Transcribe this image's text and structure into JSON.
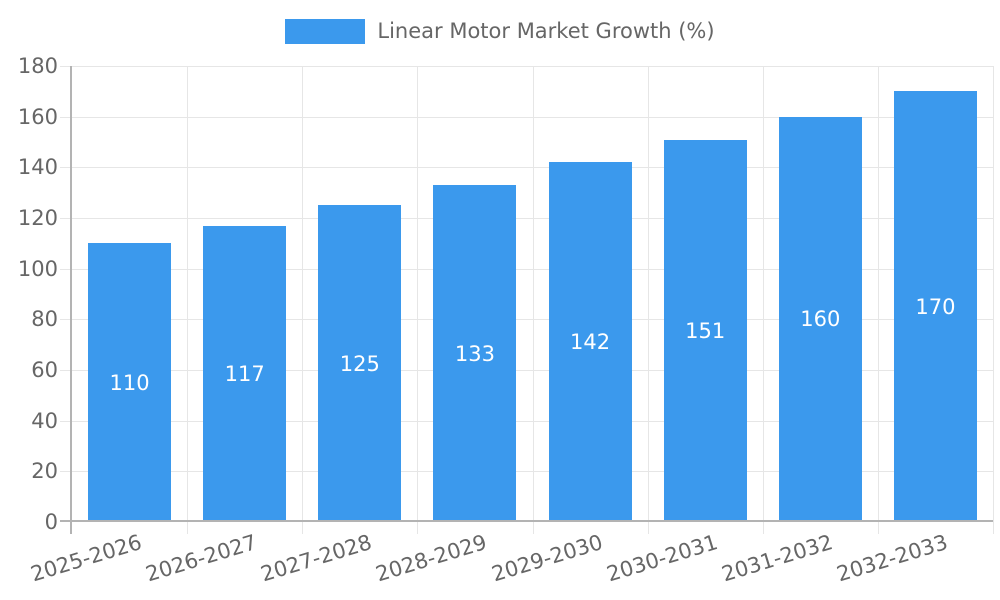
{
  "chart_data": {
    "type": "bar",
    "title": "",
    "legend_label": "Linear Motor Market Growth (%)",
    "legend_position": "top",
    "categories": [
      "2025-2026",
      "2026-2027",
      "2027-2028",
      "2028-2029",
      "2029-2030",
      "2030-2031",
      "2031-2032",
      "2032-2033"
    ],
    "values": [
      110,
      117,
      125,
      133,
      142,
      151,
      160,
      170
    ],
    "xlabel": "",
    "ylabel": "",
    "ylim": [
      0,
      180
    ],
    "yticks": [
      0,
      20,
      40,
      60,
      80,
      100,
      120,
      140,
      160,
      180
    ],
    "grid": true,
    "data_label_position": "inside-center",
    "colors": {
      "bar": "#3b99ed",
      "axis_text": "#666666",
      "grid_line": "#e6e6e6",
      "axis_line": "#b3b3b3",
      "data_label": "#ffffff",
      "background": "#ffffff"
    }
  }
}
